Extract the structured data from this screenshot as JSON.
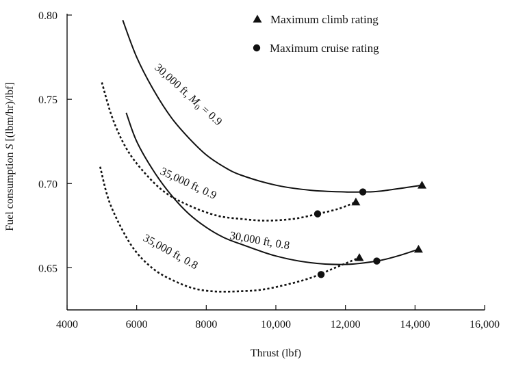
{
  "chart_data": {
    "type": "line",
    "xlabel": "Thrust (lbf)",
    "ylabel": "Fuel consumption S [(lbm/hr)/lbf]",
    "xlim": [
      4000,
      16000
    ],
    "ylim": [
      0.625,
      0.8
    ],
    "x_ticks": [
      4000,
      6000,
      8000,
      10000,
      12000,
      14000,
      16000
    ],
    "x_tick_labels": [
      "4000",
      "6000",
      "8000",
      "10,000",
      "12,000",
      "14,000",
      "16,000"
    ],
    "y_ticks": [
      0.65,
      0.7,
      0.75,
      0.8
    ],
    "y_tick_labels": [
      "0.65",
      "0.70",
      "0.75",
      "0.80"
    ],
    "grid": false,
    "legend_position": "top-right",
    "legend": [
      {
        "marker": "triangle",
        "label": "Maximum climb rating"
      },
      {
        "marker": "circle",
        "label": "Maximum cruise rating"
      }
    ],
    "series": [
      {
        "label_parts": [
          "30,000 ft, ",
          "M",
          "0",
          " = 0.9"
        ],
        "style": "solid",
        "x": [
          5600,
          6000,
          6500,
          7000,
          7500,
          8000,
          8500,
          9000,
          10000,
          11000,
          12000,
          12500,
          13000,
          14200
        ],
        "y": [
          0.797,
          0.775,
          0.755,
          0.739,
          0.727,
          0.717,
          0.71,
          0.705,
          0.699,
          0.696,
          0.695,
          0.695,
          0.6955,
          0.699
        ],
        "climb_point": [
          14200,
          0.699
        ],
        "cruise_point": [
          12500,
          0.695
        ]
      },
      {
        "label_parts": [
          "35,000 ft, 0.9"
        ],
        "style": "dotted",
        "x": [
          5000,
          5300,
          5700,
          6200,
          6800,
          7500,
          8300,
          9000,
          9700,
          10500,
          11200,
          11800,
          12300
        ],
        "y": [
          0.76,
          0.739,
          0.721,
          0.707,
          0.695,
          0.687,
          0.681,
          0.679,
          0.678,
          0.679,
          0.682,
          0.685,
          0.689
        ],
        "climb_point": [
          12300,
          0.689
        ],
        "cruise_point": [
          11200,
          0.682
        ]
      },
      {
        "label_parts": [
          "30,000 ft, 0.8"
        ],
        "style": "solid",
        "x": [
          5700,
          6000,
          6500,
          7000,
          7500,
          8000,
          8500,
          9000,
          10000,
          11000,
          12000,
          12900,
          13500,
          14100
        ],
        "y": [
          0.742,
          0.725,
          0.707,
          0.693,
          0.682,
          0.674,
          0.668,
          0.664,
          0.657,
          0.653,
          0.652,
          0.654,
          0.657,
          0.661
        ],
        "climb_point": [
          14100,
          0.661
        ],
        "cruise_point": [
          12900,
          0.654
        ]
      },
      {
        "label_parts": [
          "35,000 ft, 0.8"
        ],
        "style": "dotted",
        "x": [
          4950,
          5200,
          5600,
          6000,
          6500,
          7000,
          7600,
          8200,
          8900,
          9600,
          10300,
          11000,
          11700,
          12400
        ],
        "y": [
          0.71,
          0.69,
          0.672,
          0.659,
          0.649,
          0.643,
          0.638,
          0.636,
          0.636,
          0.637,
          0.64,
          0.644,
          0.65,
          0.656
        ],
        "climb_point": [
          12400,
          0.656
        ],
        "cruise_point": [
          11300,
          0.646
        ]
      }
    ]
  }
}
